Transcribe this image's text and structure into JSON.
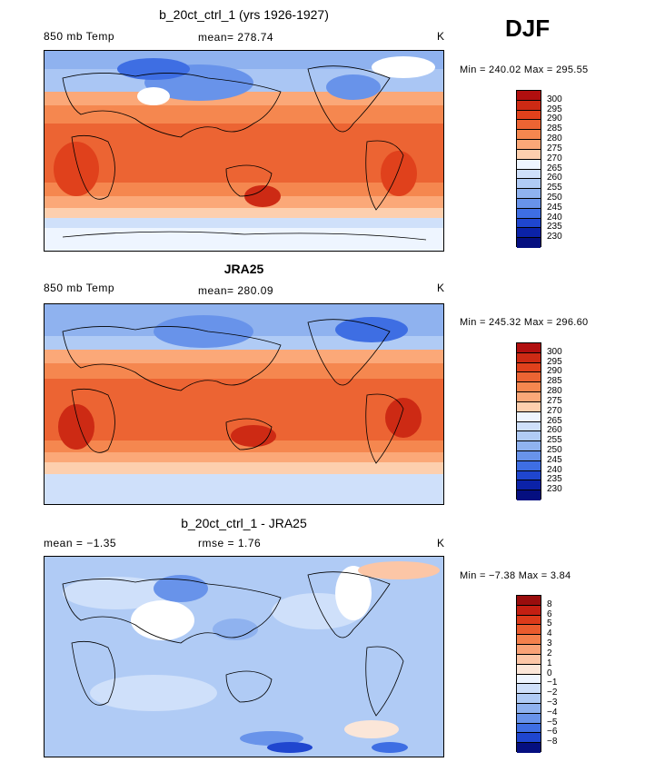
{
  "season": "DJF",
  "panels": [
    {
      "title": "b_20ct_ctrl_1 (yrs 1926-1927)",
      "left_label": "850 mb Temp",
      "center_label": "mean= 278.74",
      "unit": "K",
      "minmax": "Min = 240.02 Max = 295.55",
      "colorbar_labels": [
        "300",
        "295",
        "290",
        "285",
        "280",
        "275",
        "270",
        "265",
        "260",
        "255",
        "250",
        "245",
        "240",
        "235",
        "230"
      ],
      "colors": [
        "#b10f0f",
        "#cd2a14",
        "#e0411c",
        "#ec6433",
        "#f5874f",
        "#fba878",
        "#fdcfae",
        "#eef5ff",
        "#cfe0fa",
        "#b0cbf5",
        "#8fb2ef",
        "#6893ea",
        "#3e6ee3",
        "#1f46cf",
        "#0b22a8",
        "#050f80"
      ]
    },
    {
      "title": "JRA25",
      "left_label": "850 mb Temp",
      "center_label": "mean= 280.09",
      "unit": "K",
      "minmax": "Min = 245.32 Max = 296.60",
      "colorbar_labels": [
        "300",
        "295",
        "290",
        "285",
        "280",
        "275",
        "270",
        "265",
        "260",
        "255",
        "250",
        "245",
        "240",
        "235",
        "230"
      ],
      "colors": [
        "#b10f0f",
        "#cd2a14",
        "#e0411c",
        "#ec6433",
        "#f5874f",
        "#fba878",
        "#fdcfae",
        "#eef5ff",
        "#cfe0fa",
        "#b0cbf5",
        "#8fb2ef",
        "#6893ea",
        "#3e6ee3",
        "#1f46cf",
        "#0b22a8",
        "#050f80"
      ]
    },
    {
      "title": "b_20ct_ctrl_1 - JRA25",
      "left_label": "mean =  −1.35",
      "center_label": "rmse =   1.76",
      "unit": "K",
      "minmax": "Min =  −7.38 Max =   3.84",
      "colorbar_labels": [
        "8",
        "6",
        "5",
        "4",
        "3",
        "2",
        "1",
        "0",
        "−1",
        "−2",
        "−3",
        "−4",
        "−5",
        "−6",
        "−8"
      ],
      "colors": [
        "#9a0d0d",
        "#c41f12",
        "#dc3a1a",
        "#ea5b2d",
        "#f4804c",
        "#f9a276",
        "#fcc6a6",
        "#fbe6d8",
        "#eef5ff",
        "#cfe0fa",
        "#b0cbf5",
        "#8fb2ef",
        "#6893ea",
        "#3e6ee3",
        "#1f46cf",
        "#050f80"
      ]
    }
  ]
}
